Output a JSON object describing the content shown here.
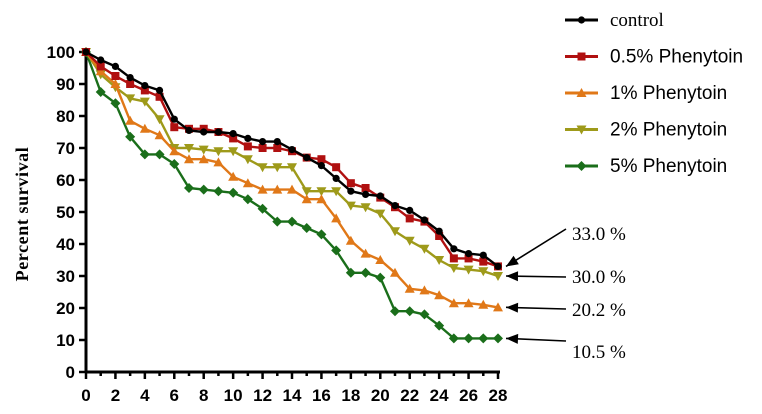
{
  "chart_data": {
    "type": "line",
    "title": "",
    "xlabel": "",
    "ylabel": "Percent survival",
    "xlim": [
      0,
      28
    ],
    "ylim": [
      0,
      100
    ],
    "x_ticks": [
      "0",
      "2",
      "4",
      "6",
      "8",
      "10",
      "12",
      "14",
      "16",
      "18",
      "20",
      "22",
      "24",
      "26",
      "28"
    ],
    "y_ticks": [
      "0",
      "10",
      "20",
      "30",
      "40",
      "50",
      "60",
      "70",
      "80",
      "90",
      "100"
    ],
    "x": [
      0,
      1,
      2,
      3,
      4,
      5,
      6,
      7,
      8,
      9,
      10,
      11,
      12,
      13,
      14,
      15,
      16,
      17,
      18,
      19,
      20,
      21,
      22,
      23,
      24,
      25,
      26,
      27,
      28
    ],
    "series": [
      {
        "name": "control",
        "color": "#000000",
        "marker": "circle",
        "values": [
          100,
          97.5,
          95.5,
          92,
          89.5,
          88,
          79,
          75.5,
          75,
          75,
          74.5,
          73,
          72,
          72,
          69.5,
          67,
          64.5,
          60.5,
          56.5,
          55.5,
          55,
          52,
          50.5,
          47.5,
          44,
          38.5,
          37,
          36.5,
          33
        ]
      },
      {
        "name": "0.5% Phenytoin",
        "color": "#b01010",
        "marker": "square",
        "values": [
          100,
          95.5,
          92.5,
          90,
          88,
          86,
          76.5,
          76,
          76,
          75,
          73,
          70.5,
          70,
          70,
          69,
          67,
          66.5,
          64,
          59,
          57.5,
          54.5,
          51.5,
          48,
          47,
          42.5,
          35.5,
          35.5,
          34.5,
          33
        ]
      },
      {
        "name": "1% Phenytoin",
        "color": "#e07818",
        "marker": "triangle-up",
        "values": [
          100,
          94,
          90,
          78.5,
          76,
          74,
          69,
          66.5,
          66.5,
          65.5,
          61,
          59,
          57,
          57,
          57,
          54,
          54,
          48,
          41,
          37,
          35,
          31,
          26,
          25.5,
          24,
          21.5,
          21.5,
          21,
          20.2
        ]
      },
      {
        "name": "2% Phenytoin",
        "color": "#9e9a1a",
        "marker": "triangle-down",
        "values": [
          100,
          93,
          89,
          85.5,
          84.5,
          79,
          70,
          70,
          69.5,
          69,
          69,
          66.5,
          64,
          64,
          64,
          56.5,
          56.5,
          56.5,
          52,
          51.5,
          49.5,
          44,
          41,
          38.5,
          35,
          32.5,
          32,
          31.5,
          30
        ]
      },
      {
        "name": "5% Phenytoin",
        "color": "#1a6e1a",
        "marker": "diamond",
        "values": [
          100,
          87.5,
          84,
          73.5,
          68,
          68,
          65,
          57.5,
          57,
          56.5,
          56,
          54,
          51,
          47,
          47,
          45,
          43,
          38,
          31,
          31,
          29.5,
          19,
          19,
          18,
          14.5,
          10.5,
          10.5,
          10.5,
          10.5
        ]
      }
    ],
    "legend_position": "top-right",
    "annotations": [
      {
        "text": "33.0 %",
        "target_x": 28,
        "target_y": 33
      },
      {
        "text": "30.0 %",
        "target_x": 28,
        "target_y": 30
      },
      {
        "text": "20.2 %",
        "target_x": 28,
        "target_y": 20.2
      },
      {
        "text": "10.5 %",
        "target_x": 28,
        "target_y": 10.5
      }
    ]
  }
}
